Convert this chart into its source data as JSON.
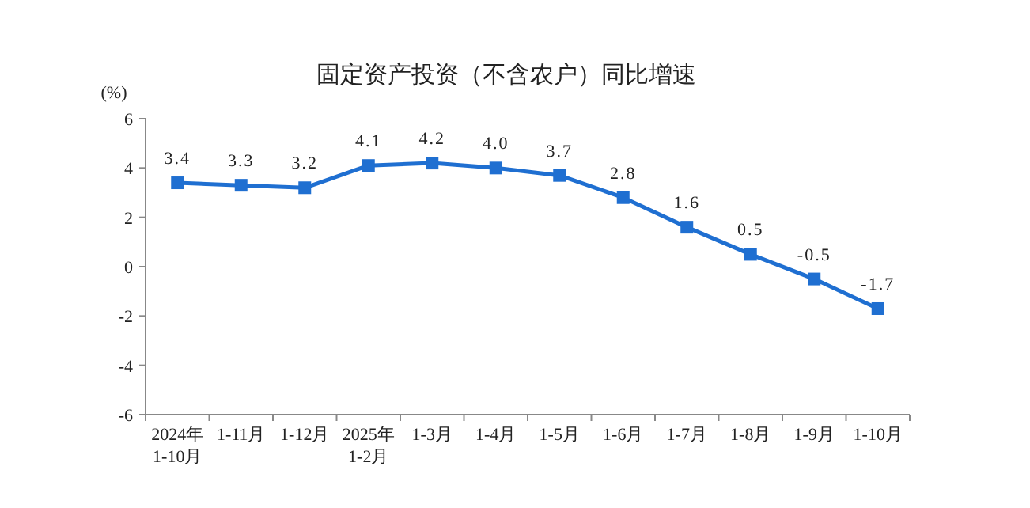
{
  "chart_data": {
    "type": "line",
    "title": "固定资产投资（不含农户）同比增速",
    "ylabel": "(%)",
    "categories": [
      "2024年\n1-10月",
      "1-11月",
      "1-12月",
      "2025年\n1-2月",
      "1-3月",
      "1-4月",
      "1-5月",
      "1-6月",
      "1-7月",
      "1-8月",
      "1-9月",
      "1-10月"
    ],
    "series": [
      {
        "color": "#1f6fd1",
        "values": [
          3.4,
          3.3,
          3.2,
          4.1,
          4.2,
          4.0,
          3.7,
          2.8,
          1.6,
          0.5,
          -0.5,
          -1.7
        ],
        "value_labels": [
          "3.4",
          "3.3",
          "3.2",
          "4.1",
          "4.2",
          "4.0",
          "3.7",
          "2.8",
          "1.6",
          "0.5",
          "-0.5",
          "-1.7"
        ]
      }
    ],
    "ylim": [
      -6,
      6
    ],
    "yticks": [
      -6,
      -4,
      -2,
      0,
      2,
      4,
      6
    ],
    "marker": "square",
    "line_style": "solid"
  }
}
